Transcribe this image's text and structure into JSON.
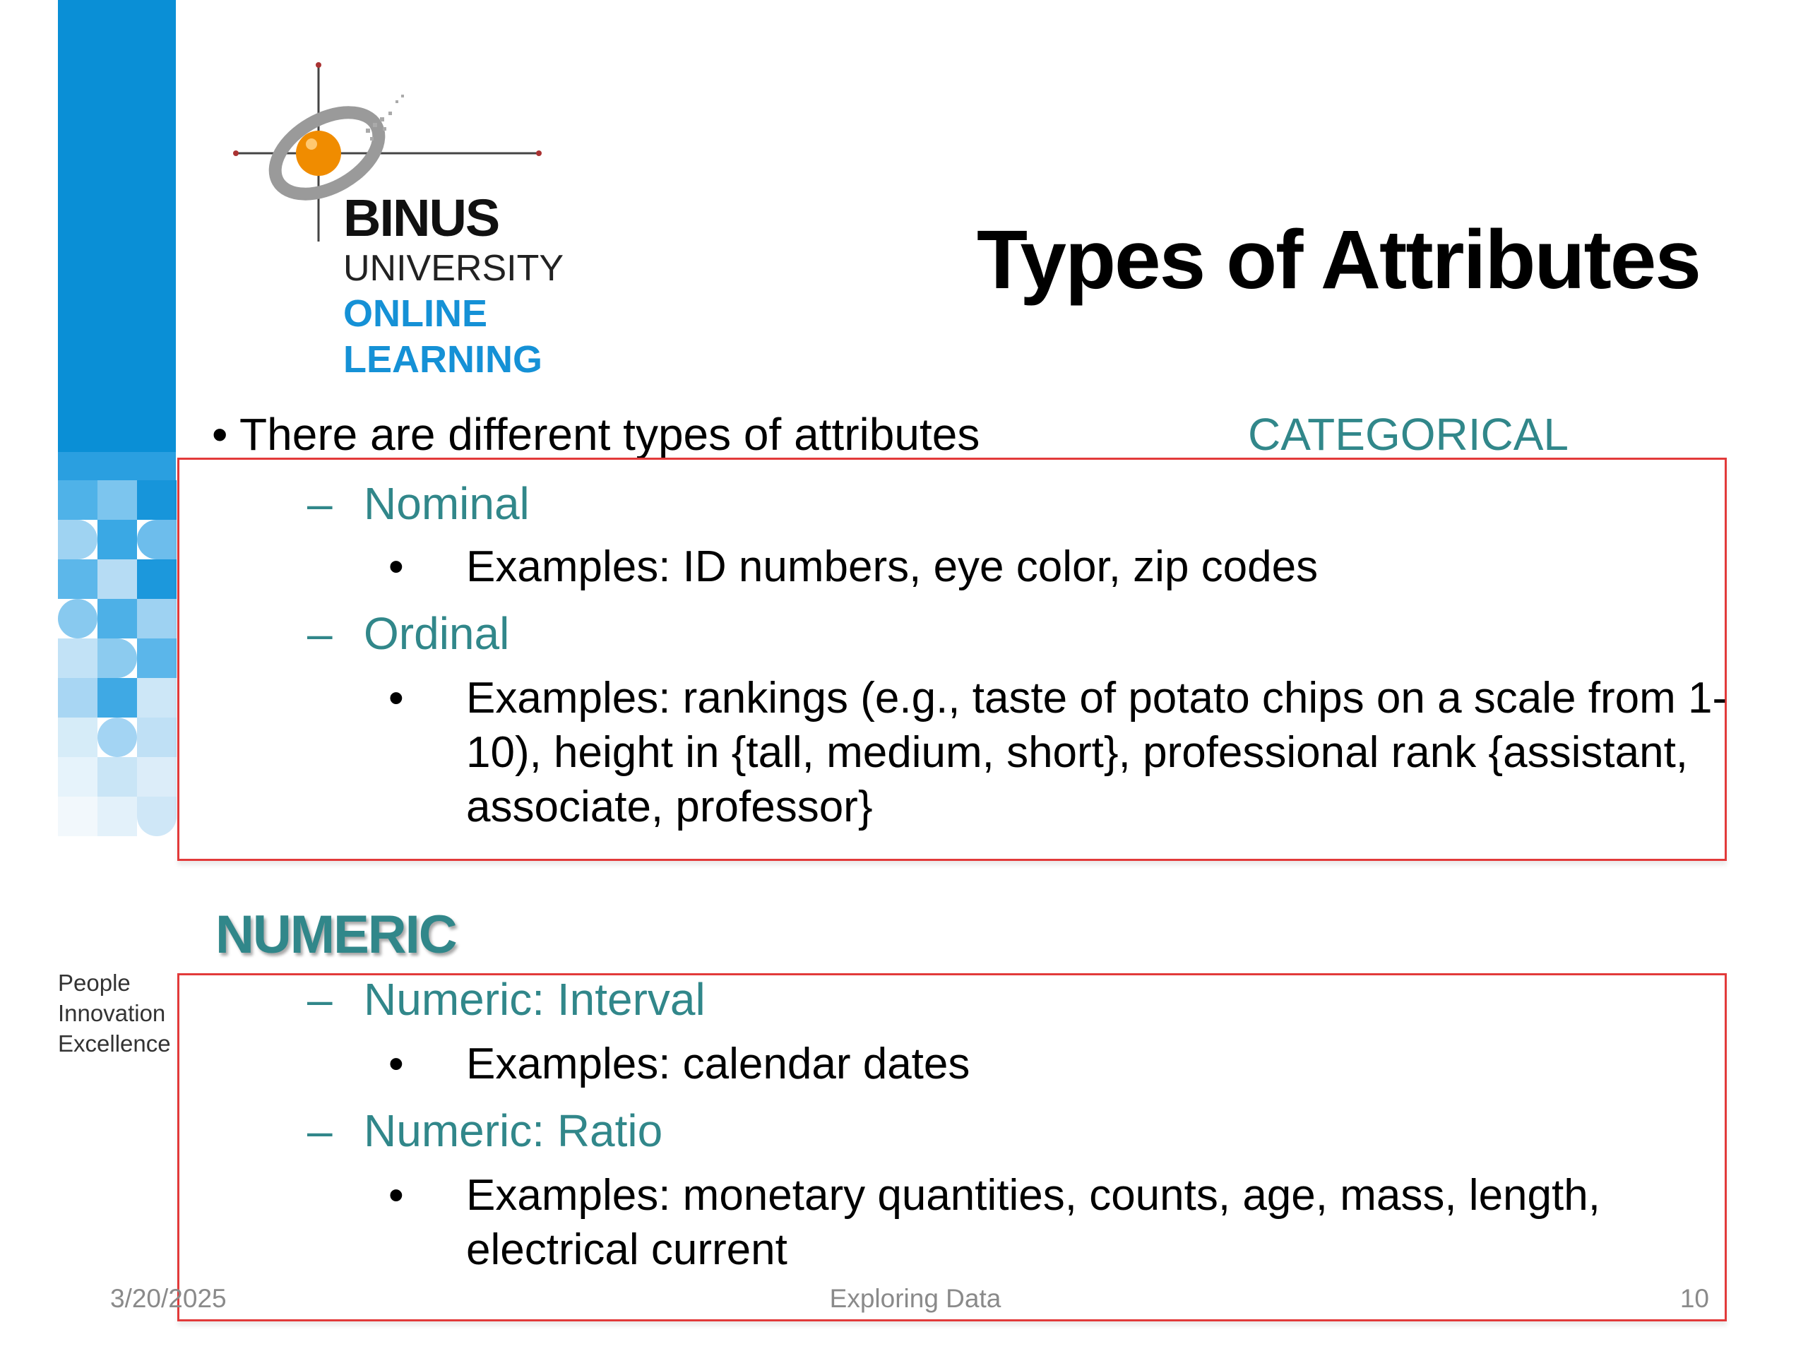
{
  "branding": {
    "logo_lines": [
      "BINUS",
      "UNIVERSITY",
      "ONLINE",
      "LEARNING"
    ],
    "tagline": [
      "People",
      "Innovation",
      "Excellence"
    ],
    "colors": {
      "brand_blue": "#0a8fd6",
      "logo_orange": "#f08c00",
      "teal": "#31878a",
      "box_red": "#e23a3a"
    }
  },
  "slide": {
    "title": "Types of Attributes",
    "intro_bullet": "There are different types of attributes",
    "categorical_label": "CATEGORICAL",
    "numeric_label": "NUMERIC",
    "categorical": [
      {
        "dash": "–",
        "name": "Nominal",
        "bullet": "•",
        "example": "Examples: ID numbers, eye color, zip codes"
      },
      {
        "dash": "–",
        "name": "Ordinal",
        "bullet": "•",
        "example": "Examples: rankings (e.g., taste of potato chips on a scale from 1-10), height in {tall, medium, short}, professional rank {assistant, associate, professor}"
      }
    ],
    "numeric": [
      {
        "dash": "–",
        "name": "Numeric: Interval",
        "bullet": "•",
        "example": "Examples: calendar dates"
      },
      {
        "dash": "–",
        "name": "Numeric: Ratio",
        "bullet": "•",
        "example": "Examples: monetary quantities, counts, age, mass, length, electrical current"
      }
    ]
  },
  "footer": {
    "date": "3/20/2025",
    "title": "Exploring Data",
    "page": "10"
  }
}
